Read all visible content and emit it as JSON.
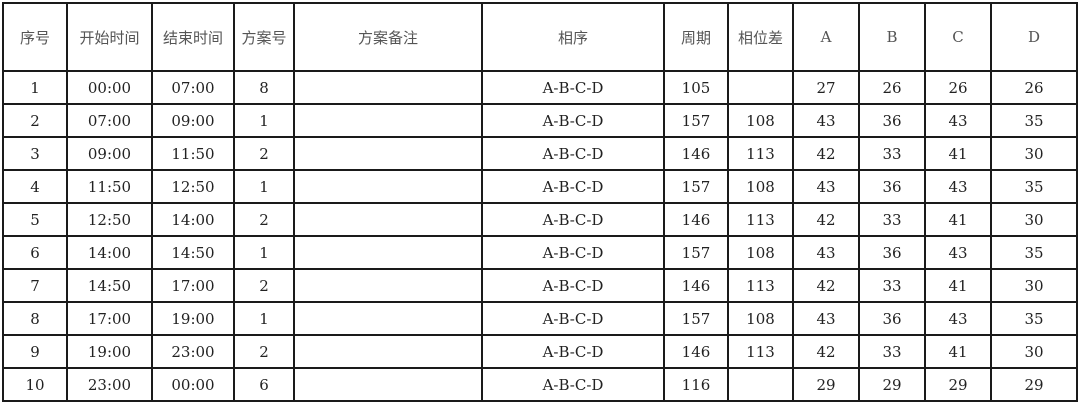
{
  "headers": [
    "序号",
    "开始时间",
    "结束时间",
    "方案号",
    "方案备注",
    "相序",
    "周期",
    "相位差",
    "A",
    "B",
    "C",
    "D"
  ],
  "rows": [
    [
      "1",
      "00:00",
      "07:00",
      "8",
      "",
      "A-B-C-D",
      "105",
      "",
      "27",
      "26",
      "26",
      "26"
    ],
    [
      "2",
      "07:00",
      "09:00",
      "1",
      "",
      "A-B-C-D",
      "157",
      "108",
      "43",
      "36",
      "43",
      "35"
    ],
    [
      "3",
      "09:00",
      "11:50",
      "2",
      "",
      "A-B-C-D",
      "146",
      "113",
      "42",
      "33",
      "41",
      "30"
    ],
    [
      "4",
      "11:50",
      "12:50",
      "1",
      "",
      "A-B-C-D",
      "157",
      "108",
      "43",
      "36",
      "43",
      "35"
    ],
    [
      "5",
      "12:50",
      "14:00",
      "2",
      "",
      "A-B-C-D",
      "146",
      "113",
      "42",
      "33",
      "41",
      "30"
    ],
    [
      "6",
      "14:00",
      "14:50",
      "1",
      "",
      "A-B-C-D",
      "157",
      "108",
      "43",
      "36",
      "43",
      "35"
    ],
    [
      "7",
      "14:50",
      "17:00",
      "2",
      "",
      "A-B-C-D",
      "146",
      "113",
      "42",
      "33",
      "41",
      "30"
    ],
    [
      "8",
      "17:00",
      "19:00",
      "1",
      "",
      "A-B-C-D",
      "157",
      "108",
      "43",
      "36",
      "43",
      "35"
    ],
    [
      "9",
      "19:00",
      "23:00",
      "2",
      "",
      "A-B-C-D",
      "146",
      "113",
      "42",
      "33",
      "41",
      "30"
    ],
    [
      "10",
      "23:00",
      "00:00",
      "6",
      "",
      "A-B-C-D",
      "116",
      "",
      "29",
      "29",
      "29",
      "29"
    ]
  ]
}
